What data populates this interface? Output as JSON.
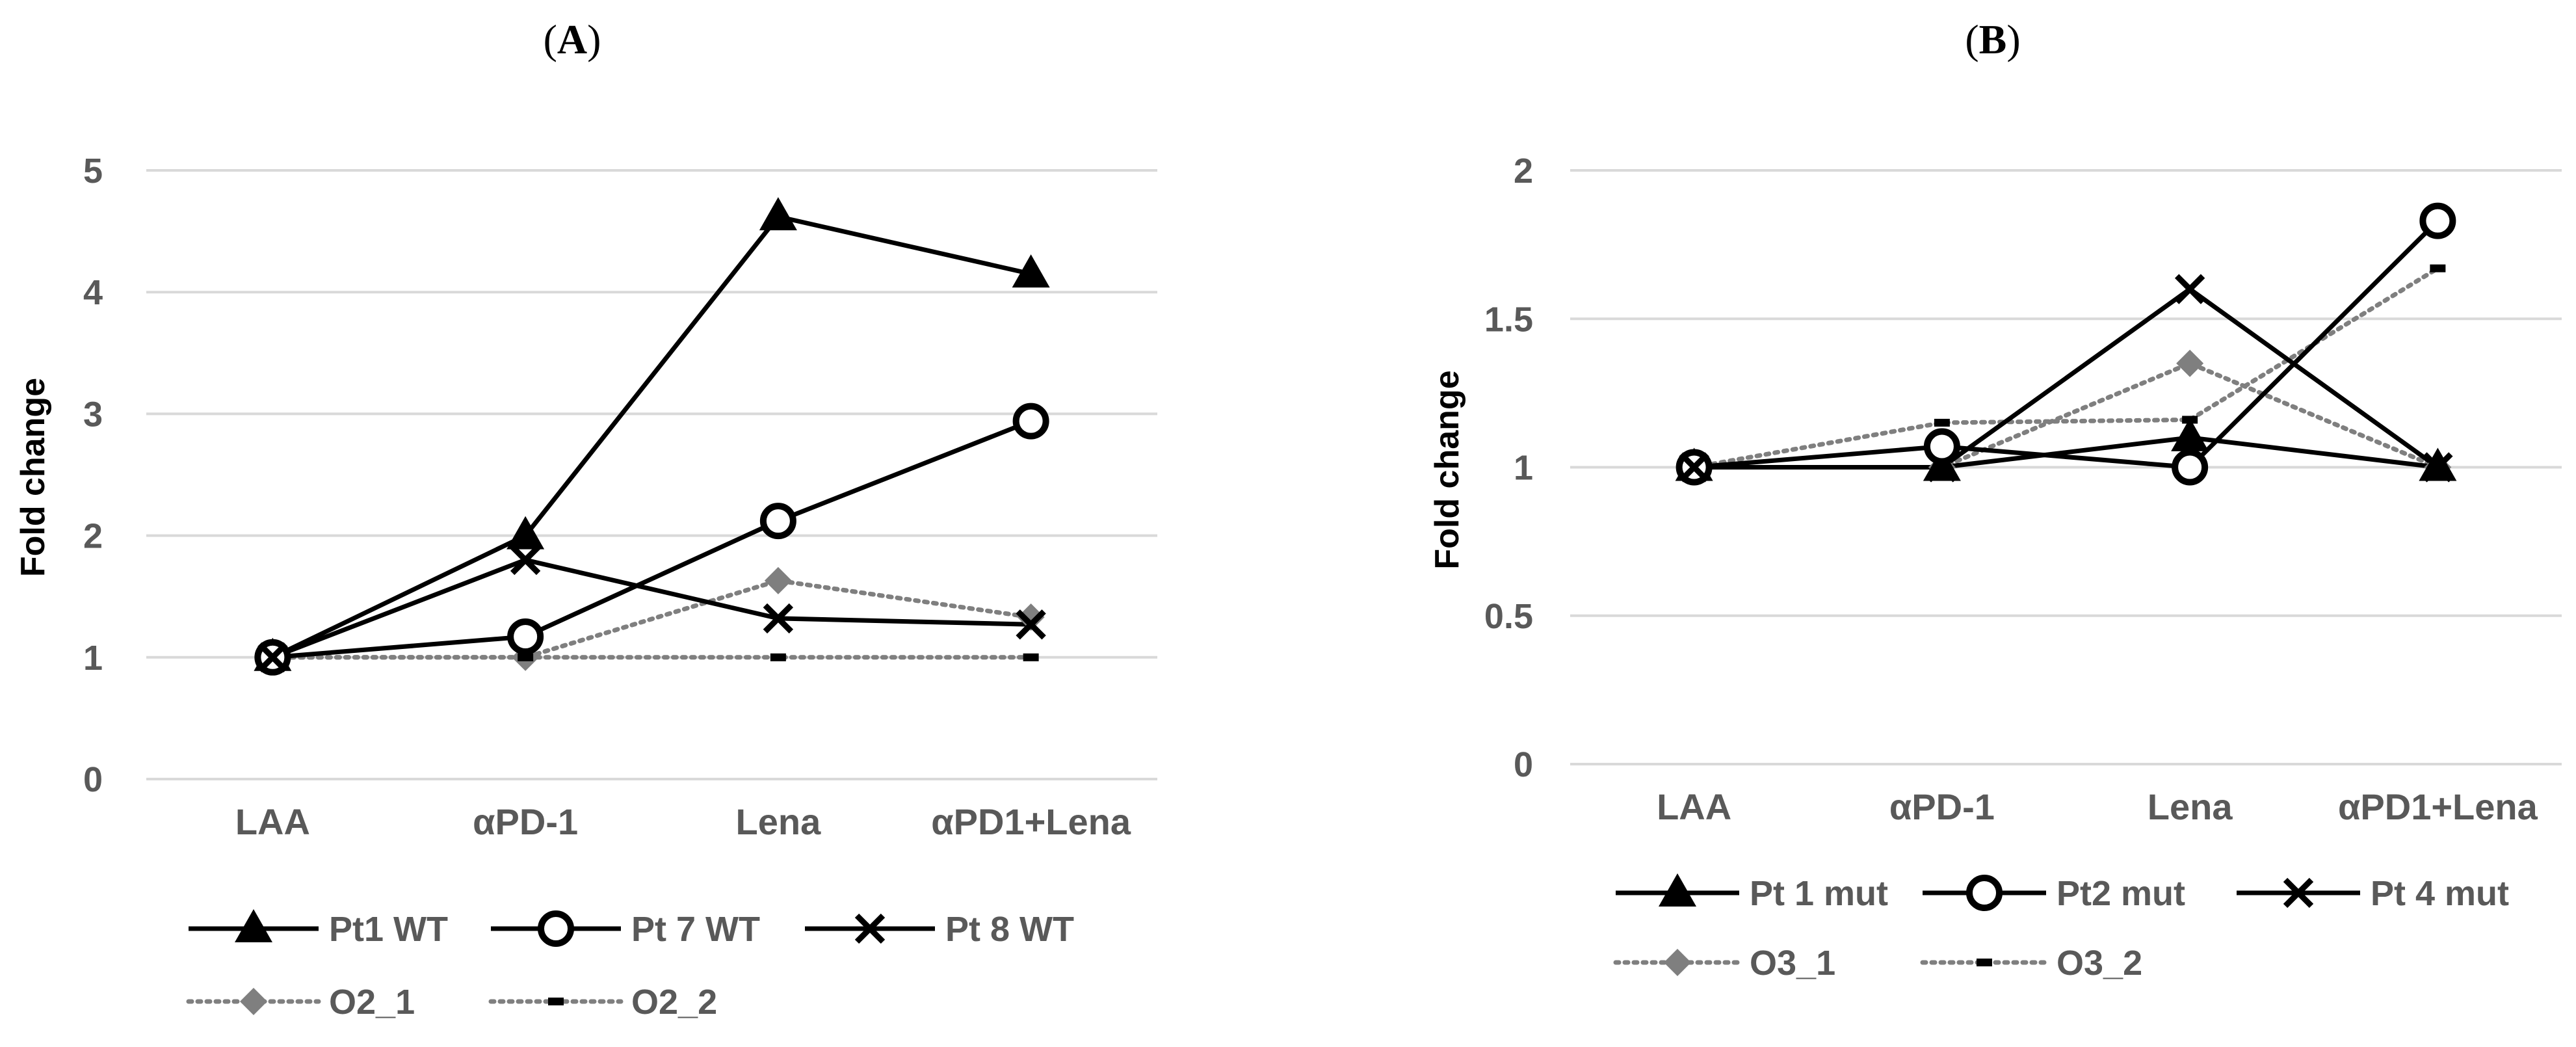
{
  "figure_labels": {
    "left": {
      "open": "(",
      "letter": "A",
      "close": ")"
    },
    "right": {
      "open": "(",
      "letter": "B",
      "close": ")"
    }
  },
  "colors": {
    "solid": "#000000",
    "dotted": "#7f7f7f",
    "grid": "#d9d9d9",
    "axis_text": "#595959"
  },
  "chart_data": [
    {
      "type": "line",
      "panel": "A",
      "title": "(A)",
      "ylabel": "Fold change",
      "xlabel": "",
      "categories": [
        "LAA",
        "αPD-1",
        "Lena",
        "αPD1+Lena"
      ],
      "ylim": [
        0,
        5
      ],
      "yticks": [
        0,
        1,
        2,
        3,
        4,
        5
      ],
      "ytick_labels": [
        "0",
        "1",
        "2",
        "3",
        "4",
        "5"
      ],
      "grid": true,
      "legend_position": "bottom",
      "series": [
        {
          "name": "Pt1 WT",
          "style": "solid",
          "marker": "triangle",
          "values": [
            1,
            2,
            4.62,
            4.15
          ]
        },
        {
          "name": "Pt 7 WT",
          "style": "solid",
          "marker": "circle",
          "values": [
            1,
            1.17,
            2.12,
            2.94
          ]
        },
        {
          "name": "Pt 8 WT",
          "style": "solid",
          "marker": "cross",
          "values": [
            1,
            1.8,
            1.32,
            1.27
          ]
        },
        {
          "name": "O2_1",
          "style": "dotted",
          "marker": "diamond",
          "values": [
            1,
            1,
            1.63,
            1.33
          ]
        },
        {
          "name": "O2_2",
          "style": "dotted",
          "marker": "dash",
          "values": [
            1,
            1,
            1,
            1
          ]
        }
      ]
    },
    {
      "type": "line",
      "panel": "B",
      "title": "(B)",
      "ylabel": "Fold change",
      "xlabel": "",
      "categories": [
        "LAA",
        "αPD-1",
        "Lena",
        "αPD1+Lena"
      ],
      "ylim": [
        0,
        2
      ],
      "yticks": [
        0,
        0.5,
        1,
        1.5,
        2
      ],
      "ytick_labels": [
        "0",
        "0.5",
        "1",
        "1.5",
        "2"
      ],
      "grid": true,
      "legend_position": "bottom",
      "series": [
        {
          "name": "Pt 1 mut",
          "style": "solid",
          "marker": "triangle",
          "values": [
            1,
            1,
            1.1,
            1
          ]
        },
        {
          "name": "Pt2 mut",
          "style": "solid",
          "marker": "circle",
          "values": [
            1,
            1.07,
            1,
            1.83
          ]
        },
        {
          "name": "Pt 4 mut",
          "style": "solid",
          "marker": "cross",
          "values": [
            1,
            1,
            1.6,
            1
          ]
        },
        {
          "name": "O3_1",
          "style": "dotted",
          "marker": "diamond",
          "values": [
            1,
            1,
            1.35,
            1
          ]
        },
        {
          "name": "O3_2",
          "style": "dotted",
          "marker": "dash",
          "values": [
            1,
            1.15,
            1.16,
            1.67
          ]
        }
      ]
    }
  ]
}
